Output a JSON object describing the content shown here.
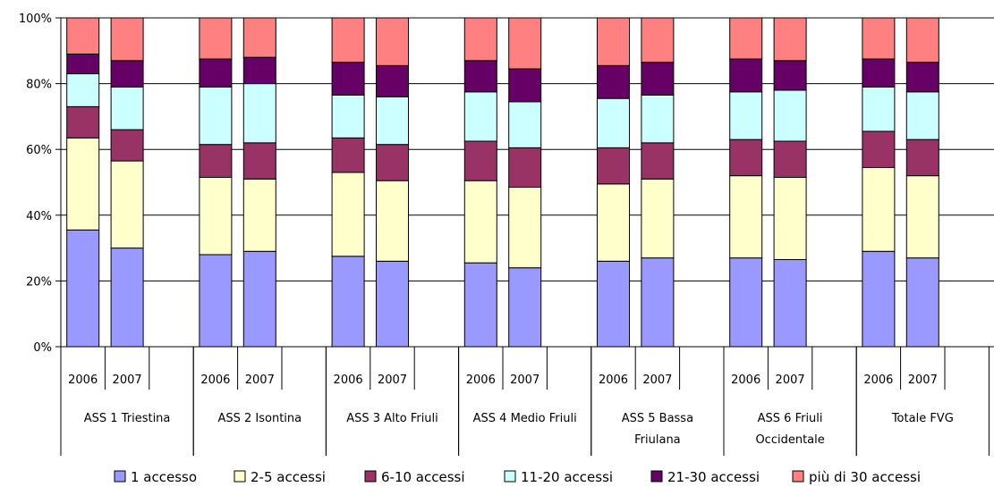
{
  "chart_data": {
    "type": "bar",
    "stacked": true,
    "normalized": true,
    "ylim": [
      0,
      100
    ],
    "yticks": [
      "0%",
      "20%",
      "40%",
      "60%",
      "80%",
      "100%"
    ],
    "grid": true,
    "legend_position": "bottom",
    "groups": [
      {
        "label": "ASS 1 Triestina",
        "bars": [
          {
            "year": "2006",
            "values": [
              35.5,
              28.0,
              9.5,
              10.0,
              6.0,
              11.0
            ]
          },
          {
            "year": "2007",
            "values": [
              30.0,
              26.5,
              9.5,
              13.0,
              8.0,
              13.0
            ]
          }
        ]
      },
      {
        "label": "ASS 2 Isontina",
        "bars": [
          {
            "year": "2006",
            "values": [
              28.0,
              23.5,
              10.0,
              17.5,
              8.5,
              12.5
            ]
          },
          {
            "year": "2007",
            "values": [
              29.0,
              22.0,
              11.0,
              18.0,
              8.0,
              12.0
            ]
          }
        ]
      },
      {
        "label": "ASS 3 Alto Friuli",
        "bars": [
          {
            "year": "2006",
            "values": [
              27.5,
              25.5,
              10.5,
              13.0,
              10.0,
              13.5
            ]
          },
          {
            "year": "2007",
            "values": [
              26.0,
              24.5,
              11.0,
              14.5,
              9.5,
              14.5
            ]
          }
        ]
      },
      {
        "label": "ASS 4 Medio Friuli",
        "bars": [
          {
            "year": "2006",
            "values": [
              25.5,
              25.0,
              12.0,
              15.0,
              9.5,
              13.0
            ]
          },
          {
            "year": "2007",
            "values": [
              24.0,
              24.5,
              12.0,
              14.0,
              10.0,
              15.5
            ]
          }
        ]
      },
      {
        "label": "ASS 5 Bassa Friulana",
        "bars": [
          {
            "year": "2006",
            "values": [
              26.0,
              23.5,
              11.0,
              15.0,
              10.0,
              14.5
            ]
          },
          {
            "year": "2007",
            "values": [
              27.0,
              24.0,
              11.0,
              14.5,
              10.0,
              13.5
            ]
          }
        ]
      },
      {
        "label": "ASS 6 Friuli Occidentale",
        "bars": [
          {
            "year": "2006",
            "values": [
              27.0,
              25.0,
              11.0,
              14.5,
              10.0,
              12.5
            ]
          },
          {
            "year": "2007",
            "values": [
              26.5,
              25.0,
              11.0,
              15.5,
              9.0,
              13.0
            ]
          }
        ]
      },
      {
        "label": "Totale FVG",
        "bars": [
          {
            "year": "2006",
            "values": [
              29.0,
              25.5,
              11.0,
              13.5,
              8.5,
              12.5
            ]
          },
          {
            "year": "2007",
            "values": [
              27.0,
              25.0,
              11.0,
              14.5,
              9.0,
              13.5
            ]
          }
        ]
      }
    ],
    "series": [
      {
        "name": "1 accesso",
        "color": "#9999ff"
      },
      {
        "name": "2-5 accessi",
        "color": "#ffffcc"
      },
      {
        "name": "6-10 accessi",
        "color": "#993366"
      },
      {
        "name": "11-20 accessi",
        "color": "#ccffff"
      },
      {
        "name": "21-30 accessi",
        "color": "#660066"
      },
      {
        "name": "più di 30 accessi",
        "color": "#ff8080"
      }
    ]
  }
}
